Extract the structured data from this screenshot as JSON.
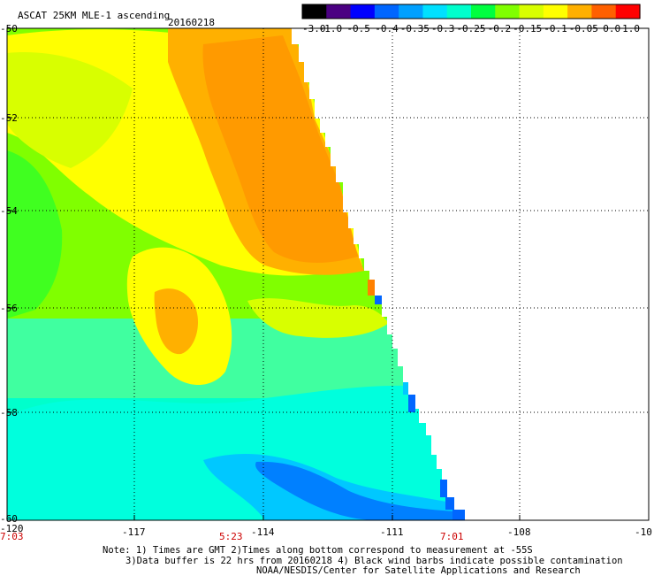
{
  "header": {
    "title": "ASCAT 25KM MLE-1 ascending",
    "date": "20160218"
  },
  "colorbar": {
    "labels": [
      "-3.0",
      "-1.0",
      "-0.5",
      "-0.4",
      "-0.35",
      "-0.3",
      "-0.25",
      "-0.2",
      "-0.15",
      "-0.1",
      "-0.05",
      "0.0",
      "1.0"
    ],
    "colors": [
      "#000000",
      "#4b0082",
      "#0000ff",
      "#0066ff",
      "#00a0ff",
      "#00e0ff",
      "#00ffcc",
      "#00ff40",
      "#80ff00",
      "#d8ff00",
      "#ffff00",
      "#ffb000",
      "#ff6000",
      "#ff0000"
    ]
  },
  "map": {
    "lat_labels": [
      "-50",
      "-52",
      "-54",
      "-56",
      "-58",
      "-60"
    ],
    "lon_labels": [
      "-120",
      "-117",
      "-114",
      "-111",
      "-108",
      "-10"
    ],
    "time_labels": [
      "7:03",
      "5:23",
      "7:01"
    ]
  },
  "notes": {
    "line1": "Note: 1) Times are GMT 2)Times along bottom correspond to measurement at -55S",
    "line2": "3)Data buffer is 22 hrs from 20160218 4) Black wind barbs indicate possible contamination",
    "line3": "NOAA/NESDIS/Center for Satellite Applications and Research"
  }
}
